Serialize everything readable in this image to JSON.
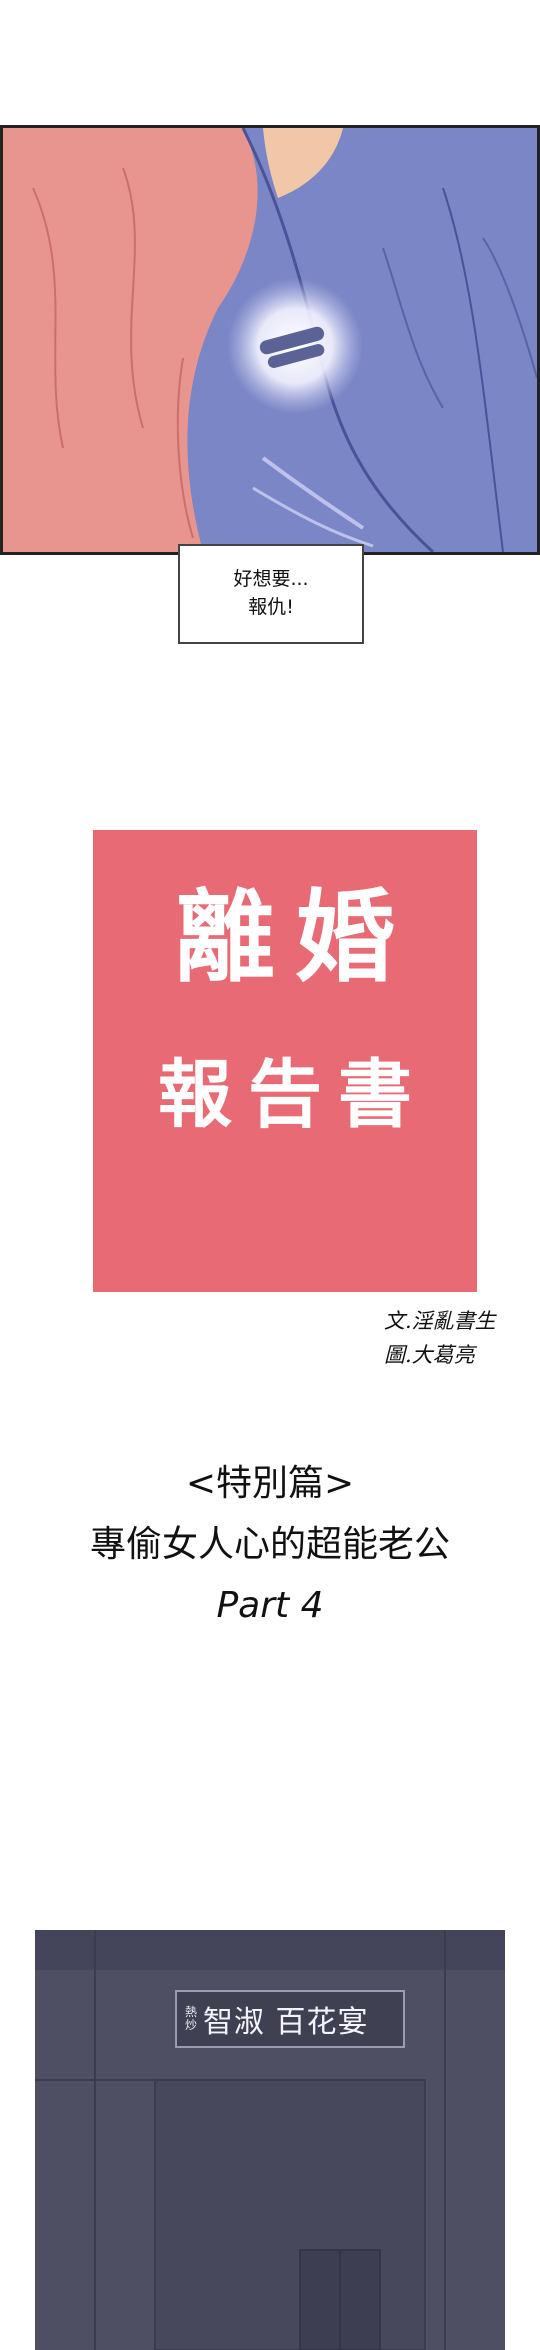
{
  "bubble": {
    "line1": "好想要...",
    "line2": "報仇!"
  },
  "title": {
    "main": "離婚",
    "sub": "報告書"
  },
  "credits": {
    "writer": "文.淫亂書生",
    "artist": "圖.大葛亮"
  },
  "episode": {
    "special": "<特別篇>",
    "title": "專偷女人心的超能老公",
    "part": "Part 4"
  },
  "sign": {
    "small_top": "熱",
    "small_bottom": "炒",
    "name": "智淑 百花宴"
  },
  "colors": {
    "title_background": "#e86a74",
    "shirt_pink": "#e9958f",
    "jacket_blue": "#7b86c6",
    "night_wall": "#4e4f63"
  }
}
